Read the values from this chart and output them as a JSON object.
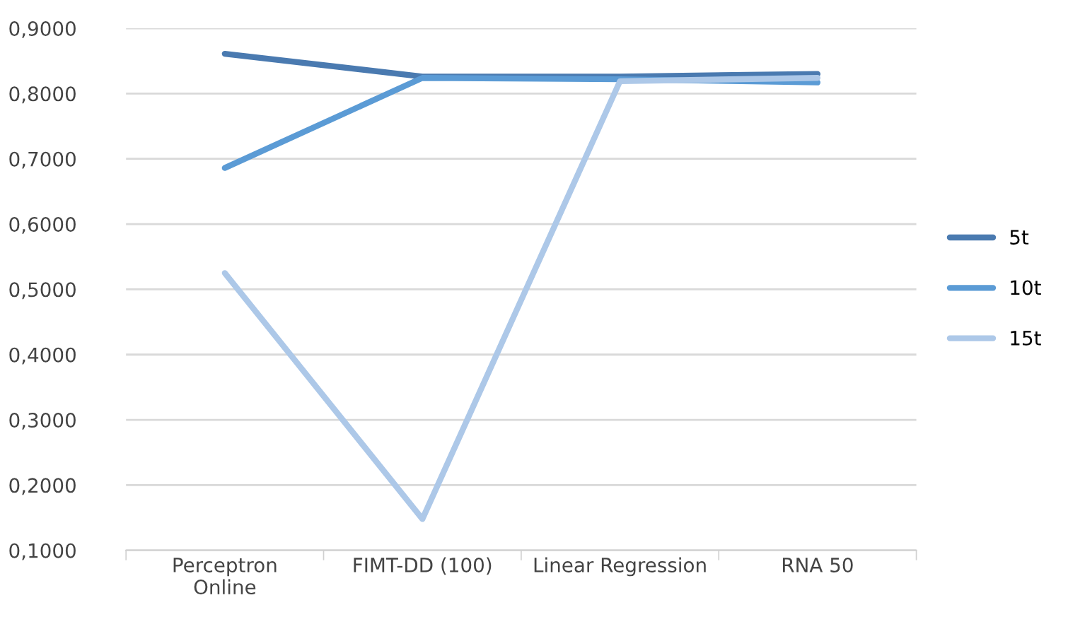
{
  "chart_data": {
    "type": "line",
    "categories": [
      "Perceptron\nOnline",
      "FIMT-DD (100)",
      "Linear Regression",
      "RNA 50"
    ],
    "series": [
      {
        "name": "5t",
        "color": "#4a7ab0",
        "values": [
          0.861,
          0.826,
          0.826,
          0.83
        ]
      },
      {
        "name": "10t",
        "color": "#5b9bd5",
        "values": [
          0.686,
          0.824,
          0.822,
          0.817
        ]
      },
      {
        "name": "15t",
        "color": "#adc8e8",
        "values": [
          0.525,
          0.148,
          0.819,
          0.824
        ]
      }
    ],
    "ylim": [
      0.1,
      0.9
    ],
    "yticks": [
      {
        "value": 0.1,
        "label": "0,1000"
      },
      {
        "value": 0.2,
        "label": "0,2000"
      },
      {
        "value": 0.3,
        "label": "0,3000"
      },
      {
        "value": 0.4,
        "label": "0,4000"
      },
      {
        "value": 0.5,
        "label": "0,5000"
      },
      {
        "value": 0.6,
        "label": "0,6000"
      },
      {
        "value": 0.7,
        "label": "0,7000"
      },
      {
        "value": 0.8,
        "label": "0,8000"
      },
      {
        "value": 0.9,
        "label": "0,9000"
      }
    ],
    "grid": "y",
    "legend": "right",
    "marker": "none",
    "line_style": "solid"
  }
}
